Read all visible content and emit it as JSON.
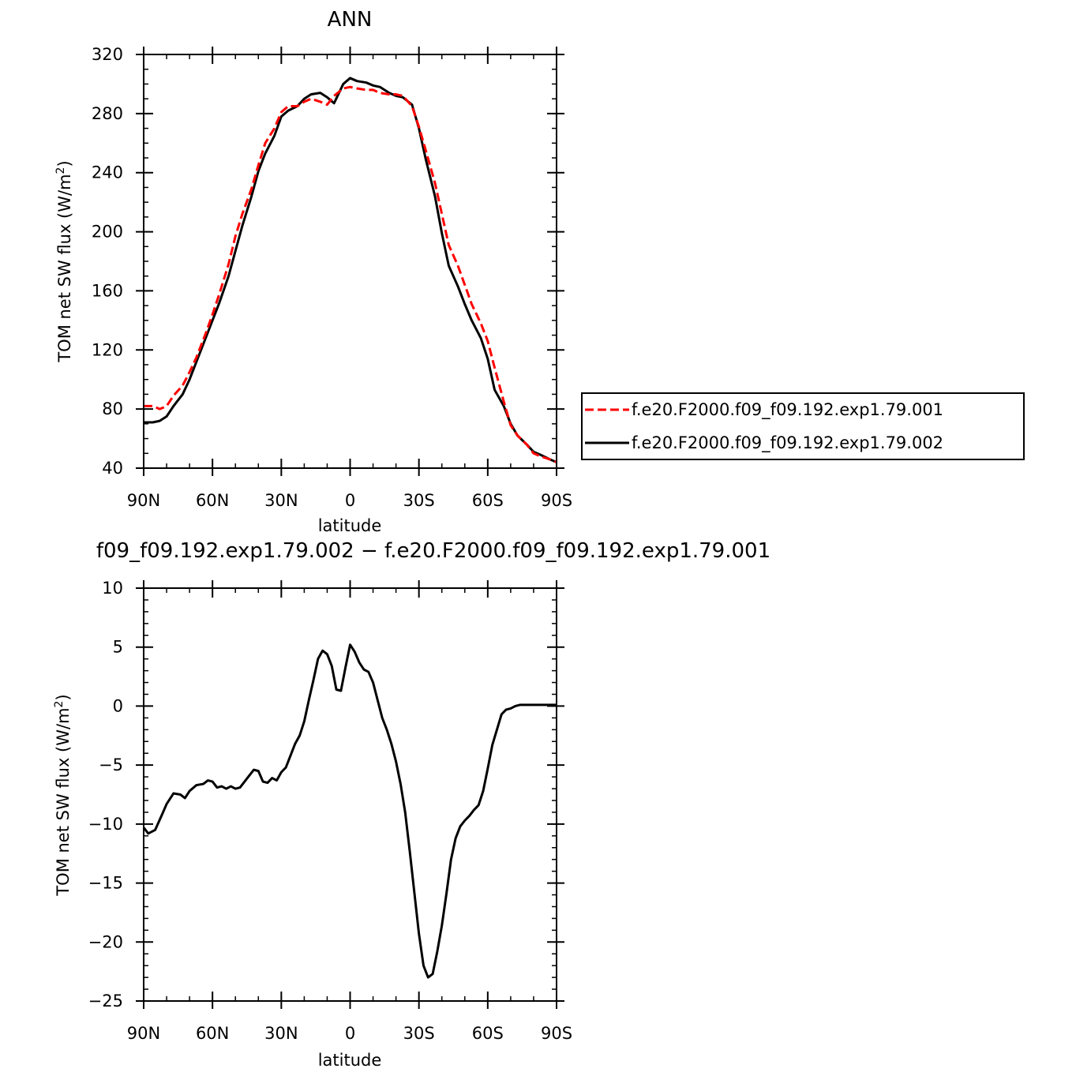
{
  "chart_data": [
    {
      "type": "line",
      "title": "ANN",
      "xlabel": "latitude",
      "ylabel": "TOM net SW flux (W/m²)",
      "ylabel_parts": {
        "main": "TOM net SW flux (W/m",
        "sup": "2",
        "end": ")"
      },
      "xlim": [
        90,
        -90
      ],
      "ylim": [
        40,
        320
      ],
      "x_ticks": [
        90,
        60,
        30,
        0,
        -30,
        -60,
        -90
      ],
      "x_tick_labels": [
        "90N",
        "60N",
        "30N",
        "0",
        "30S",
        "60S",
        "90S"
      ],
      "y_ticks": [
        40,
        80,
        120,
        160,
        200,
        240,
        280,
        320
      ],
      "y_tick_labels": [
        "40",
        "80",
        "120",
        "160",
        "200",
        "240",
        "280",
        "320"
      ],
      "grid": false,
      "legend_position": "right",
      "series": [
        {
          "name": "f.e20.F2000.f09_f09.192.exp1.79.001",
          "color": "#ff0000",
          "dash": "dashed",
          "x": [
            90,
            86,
            83,
            80,
            77,
            73,
            70,
            67,
            63,
            60,
            57,
            53,
            50,
            47,
            43,
            40,
            37,
            33,
            30,
            27,
            23,
            20,
            17,
            13,
            10,
            7,
            3,
            0,
            -3,
            -7,
            -10,
            -13,
            -17,
            -20,
            -23,
            -27,
            -30,
            -33,
            -37,
            -40,
            -43,
            -47,
            -50,
            -53,
            -57,
            -60,
            -63,
            -67,
            -70,
            -73,
            -77,
            -80,
            -83,
            -87,
            -90
          ],
          "y": [
            82,
            82,
            80,
            82,
            89,
            96,
            105,
            115,
            131,
            144,
            158,
            178,
            197,
            212,
            229,
            245,
            260,
            270,
            281,
            285,
            285,
            288,
            290,
            288,
            286,
            292,
            297,
            298,
            297,
            296,
            296,
            294,
            293,
            293,
            292,
            285,
            271,
            255,
            233,
            212,
            191,
            177,
            164,
            151,
            138,
            126,
            108,
            85,
            69,
            62,
            56,
            50,
            48,
            46,
            44
          ]
        },
        {
          "name": "f.e20.F2000.f09_f09.192.exp1.79.002",
          "color": "#000000",
          "dash": "solid",
          "x": [
            90,
            86,
            83,
            80,
            77,
            73,
            70,
            67,
            63,
            60,
            57,
            53,
            50,
            47,
            43,
            40,
            37,
            33,
            30,
            27,
            23,
            20,
            17,
            13,
            10,
            7,
            3,
            0,
            -3,
            -7,
            -10,
            -13,
            -17,
            -20,
            -23,
            -27,
            -30,
            -33,
            -37,
            -40,
            -43,
            -47,
            -50,
            -53,
            -57,
            -60,
            -63,
            -67,
            -70,
            -73,
            -77,
            -80,
            -83,
            -87,
            -90
          ],
          "y": [
            71,
            71,
            72,
            75,
            82,
            90,
            100,
            112,
            128,
            140,
            152,
            170,
            187,
            204,
            224,
            241,
            253,
            265,
            278,
            282,
            285,
            290,
            293,
            294,
            291,
            287,
            300,
            304,
            302,
            301,
            299,
            298,
            294,
            292,
            291,
            286,
            270,
            249,
            224,
            199,
            177,
            163,
            151,
            140,
            128,
            114,
            93,
            82,
            70,
            62,
            56,
            51,
            49,
            46,
            44
          ]
        }
      ]
    },
    {
      "type": "line",
      "title": "f09_f09.192.exp1.79.002 − f.e20.F2000.f09_f09.192.exp1.79.001",
      "xlabel": "latitude",
      "ylabel": "TOM net SW flux (W/m²)",
      "ylabel_parts": {
        "main": "TOM net SW flux (W/m",
        "sup": "2",
        "end": ")"
      },
      "xlim": [
        90,
        -90
      ],
      "ylim": [
        -25,
        10
      ],
      "x_ticks": [
        90,
        60,
        30,
        0,
        -30,
        -60,
        -90
      ],
      "x_tick_labels": [
        "90N",
        "60N",
        "30N",
        "0",
        "30S",
        "60S",
        "90S"
      ],
      "y_ticks": [
        -25,
        -20,
        -15,
        -10,
        -5,
        0,
        5,
        10
      ],
      "y_tick_labels": [
        "−25",
        "−20",
        "−15",
        "−10",
        "−5",
        "0",
        "5",
        "10"
      ],
      "grid": false,
      "series": [
        {
          "color": "#000000",
          "dash": "solid",
          "x": [
            90,
            88,
            85,
            82,
            80,
            77,
            74,
            72,
            70,
            67,
            64,
            62,
            60,
            58,
            56,
            54,
            52,
            50,
            48,
            46,
            44,
            42,
            40,
            38,
            36,
            34,
            32,
            30,
            28,
            26,
            24,
            22,
            20,
            18,
            16,
            14,
            12,
            10,
            8,
            6,
            4,
            2,
            0,
            -2,
            -4,
            -6,
            -8,
            -10,
            -12,
            -14,
            -16,
            -18,
            -20,
            -22,
            -24,
            -26,
            -28,
            -30,
            -32,
            -34,
            -36,
            -38,
            -40,
            -42,
            -44,
            -46,
            -48,
            -50,
            -52,
            -54,
            -56,
            -58,
            -60,
            -62,
            -64,
            -66,
            -68,
            -70,
            -72,
            -74,
            -76,
            -78,
            -80,
            -84,
            -88,
            -90
          ],
          "y": [
            -10.3,
            -10.8,
            -10.5,
            -9.2,
            -8.3,
            -7.4,
            -7.5,
            -7.8,
            -7.2,
            -6.7,
            -6.6,
            -6.3,
            -6.4,
            -6.9,
            -6.8,
            -7.0,
            -6.8,
            -7.0,
            -6.9,
            -6.4,
            -5.9,
            -5.4,
            -5.5,
            -6.4,
            -6.5,
            -6.1,
            -6.3,
            -5.6,
            -5.2,
            -4.2,
            -3.2,
            -2.5,
            -1.3,
            0.5,
            2.2,
            4.0,
            4.7,
            4.4,
            3.4,
            1.4,
            1.3,
            3.3,
            5.2,
            4.6,
            3.7,
            3.1,
            2.9,
            2.0,
            0.5,
            -1.0,
            -2.0,
            -3.2,
            -4.7,
            -6.6,
            -9.0,
            -12.3,
            -15.8,
            -19.3,
            -22.0,
            -23.0,
            -22.7,
            -20.8,
            -18.6,
            -15.9,
            -13.0,
            -11.2,
            -10.2,
            -9.7,
            -9.3,
            -8.8,
            -8.4,
            -7.2,
            -5.3,
            -3.3,
            -2.0,
            -0.7,
            -0.3,
            -0.2,
            0.0,
            0.1,
            0.1,
            0.1,
            0.1,
            0.1,
            0.1,
            0.1
          ]
        }
      ]
    }
  ]
}
